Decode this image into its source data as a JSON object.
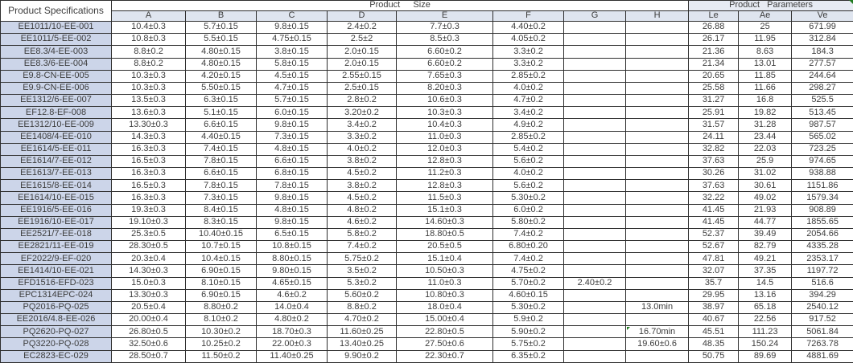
{
  "colors": {
    "first_column_fill": "#ccd5e9",
    "header_fill": "#dfe5ef",
    "params_header_fill": "#e7ebf3",
    "border_color": "#2e2e2e",
    "text_color": "#3d3d3d",
    "marker_green": "#1f7a1f"
  },
  "table": {
    "spec_header": "Product Specifications",
    "size_header": "Product Size",
    "params_header": "Product Parameters",
    "size_columns": [
      "A",
      "B",
      "C",
      "D",
      "E",
      "F",
      "G",
      "H"
    ],
    "param_columns": [
      "Le",
      "Ae",
      "Ve"
    ],
    "column_keys": [
      "spec",
      "A",
      "B",
      "C",
      "D",
      "E",
      "F",
      "G",
      "H",
      "Le",
      "Ae",
      "Ve"
    ],
    "rows": [
      [
        "EE1011/10-EE-001",
        "10.4±0.3",
        "5.7±0.15",
        "9.8±0.15",
        "2.4±0.2",
        "7.7±0.3",
        "4.40±0.2",
        "",
        "",
        "26.88",
        "25",
        "671.99"
      ],
      [
        "EE1011/5-EE-002",
        "10.8±0.3",
        "5.5±0.15",
        "4.75±0.15",
        "2.5±2",
        "8.5±0.3",
        "4.05±0.2",
        "",
        "",
        "26.17",
        "11.95",
        "312.84"
      ],
      [
        "EE8.3/4-EE-003",
        "8.8±0.2",
        "4.80±0.15",
        "3.8±0.15",
        "2.0±0.15",
        "6.60±0.2",
        "3.3±0.2",
        "",
        "",
        "21.36",
        "8.63",
        "184.3"
      ],
      [
        "EE8.3/6-EE-004",
        "8.8±0.2",
        "4.80±0.15",
        "5.8±0.15",
        "2.0±0.15",
        "6.60±0.2",
        "3.3±0.2",
        "",
        "",
        "21.34",
        "13.01",
        "277.57"
      ],
      [
        "E9.8-CN-EE-005",
        "10.3±0.3",
        "4.20±0.15",
        "4.5±0.15",
        "2.55±0.15",
        "7.65±0.3",
        "2.85±0.2",
        "",
        "",
        "20.65",
        "11.85",
        "244.64"
      ],
      [
        "E9.9-CN-EE-006",
        "10.3±0.3",
        "5.50±0.15",
        "4.7±0.15",
        "2.5±0.15",
        "8.20±0.3",
        "4.0±0.2",
        "",
        "",
        "25.58",
        "11.66",
        "298.27"
      ],
      [
        "EE1312/6-EE-007",
        "13.5±0.3",
        "6.3±0.15",
        "5.7±0.15",
        "2.8±0.2",
        "10.6±0.3",
        "4.7±0.2",
        "",
        "",
        "31.27",
        "16.8",
        "525.5"
      ],
      [
        "EF12.8-EF-008",
        "13.6±0.3",
        "5.1±0.15",
        "6.0±0.15",
        "3.20±0.2",
        "10.3±0.3",
        "3.4±0.2",
        "",
        "",
        "25.91",
        "19.82",
        "513.45"
      ],
      [
        "EE1312/10-EE-009",
        "13.30±0.3",
        "6.6±0.15",
        "9.8±0.15",
        "3.4±0.2",
        "10.4±0.3",
        "4.9±0.2",
        "",
        "",
        "31.57",
        "31.28",
        "987.57"
      ],
      [
        "EE1408/4-EE-010",
        "14.3±0.3",
        "4.40±0.15",
        "7.3±0.15",
        "3.3±0.2",
        "11.0±0.3",
        "2.85±0.2",
        "",
        "",
        "24.11",
        "23.44",
        "565.02"
      ],
      [
        "EE1614/5-EE-011",
        "16.3±0.3",
        "7.4±0.15",
        "4.8±0.15",
        "4.0±0.2",
        "12.0±0.3",
        "5.4±0.2",
        "",
        "",
        "32.82",
        "22.03",
        "723.25"
      ],
      [
        "EE1614/7-EE-012",
        "16.5±0.3",
        "7.8±0.15",
        "6.6±0.15",
        "3.8±0.2",
        "12.8±0.3",
        "5.6±0.2",
        "",
        "",
        "37.63",
        "25.9",
        "974.65"
      ],
      [
        "EE1613/7-EE-013",
        "16.3±0.3",
        "6.6±0.15",
        "6.8±0.15",
        "4.5±0.2",
        "11.2±0.3",
        "4.0±0.2",
        "",
        "",
        "30.26",
        "31.02",
        "938.88"
      ],
      [
        "EE1615/8-EE-014",
        "16.5±0.3",
        "7.8±0.15",
        "7.8±0.15",
        "3.8±0.2",
        "12.8±0.3",
        "5.6±0.2",
        "",
        "",
        "37.63",
        "30.61",
        "1151.86"
      ],
      [
        "EE1614/10-EE-015",
        "16.3±0.3",
        "7.3±0.15",
        "9.8±0.15",
        "4.5±0.2",
        "11.5±0.3",
        "5.30±0.2",
        "",
        "",
        "32.22",
        "49.02",
        "1579.34"
      ],
      [
        "EE1916/5-EE-016",
        "19.3±0.3",
        "8.4±0.15",
        "4.8±0.15",
        "4.8±0.2",
        "15.1±0.3",
        "6.0±0.2",
        "",
        "",
        "41.45",
        "21.93",
        "908.89"
      ],
      [
        "EE1916/10-EE-017",
        "19.10±0.3",
        "8.3±0.15",
        "9.8±0.15",
        "4.6±0.2",
        "14.60±0.3",
        "5.80±0.2",
        "",
        "",
        "41.45",
        "44.77",
        "1855.65"
      ],
      [
        "EE2521/7-EE-018",
        "25.3±0.5",
        "10.40±0.15",
        "6.5±0.15",
        "5.8±0.2",
        "18.80±0.5",
        "7.4±0.2",
        "",
        "",
        "52.37",
        "39.49",
        "2054.66"
      ],
      [
        "EE2821/11-EE-019",
        "28.30±0.5",
        "10.7±0.15",
        "10.8±0.15",
        "7.4±0.2",
        "20.5±0.5",
        "6.80±0.20",
        "",
        "",
        "52.67",
        "82.79",
        "4335.28"
      ],
      [
        "EF2022/9-EF-020",
        "20.3±0.4",
        "10.4±0.15",
        "8.80±0.15",
        "5.75±0.2",
        "15.1±0.4",
        "7.4±0.2",
        "",
        "",
        "47.81",
        "49.21",
        "2353.17"
      ],
      [
        "EE1414/10-EE-021",
        "14.30±0.3",
        "6.90±0.15",
        "9.80±0.15",
        "3.5±0.2",
        "10.50±0.3",
        "4.75±0.2",
        "",
        "",
        "32.07",
        "37.35",
        "1197.72"
      ],
      [
        "EFD1516-EFD-023",
        "15.0±0.3",
        "8.10±0.15",
        "4.65±0.15",
        "5.3±0.2",
        "11.0±0.3",
        "5.70±0.2",
        "2.40±0.2",
        "",
        "35.7",
        "14.5",
        "516.6"
      ],
      [
        "EPC1314EPC-024",
        "13.30±0.3",
        "6.90±0.15",
        "4.6±0.2",
        "5.60±0.2",
        "10.80±0.3",
        "4.60±0.15",
        "",
        "",
        "29.95",
        "13.16",
        "394.29"
      ],
      [
        "PQ2016-PQ-025",
        "20.5±0.4",
        "8.80±0.2",
        "14.0±0.4",
        "8.8±0.2",
        "18.0±0.4",
        "5.30±0.2",
        "",
        "13.0min",
        "38.97",
        "65.18",
        "2540.12"
      ],
      [
        "EE2016/4.8-EE-026",
        "20.00±0.4",
        "8.10±0.2",
        "4.80±0.2",
        "4.70±0.2",
        "15.00±0.4",
        "5.9±0.2",
        "",
        "",
        "40.67",
        "22.56",
        "917.52"
      ],
      [
        "PQ2620-PQ-027",
        "26.80±0.5",
        "10.30±0.2",
        "18.70±0.3",
        "11.60±0.25",
        "22.80±0.5",
        "5.90±0.2",
        "",
        "16.70min",
        "45.51",
        "111.23",
        "5061.84"
      ],
      [
        "PQ3220-PQ-028",
        "32.50±0.6",
        "10.25±0.2",
        "22.00±0.3",
        "13.40±0.25",
        "27.50±0.6",
        "5.75±0.2",
        "",
        "19.60±0.6",
        "48.35",
        "150.24",
        "7263.78"
      ],
      [
        "EC2823-EC-029",
        "28.50±0.7",
        "11.50±0.2",
        "11.40±0.25",
        "9.90±0.2",
        "22.30±0.7",
        "6.35±0.2",
        "",
        "",
        "50.75",
        "89.69",
        "4881.69"
      ]
    ],
    "comment_markers": [
      {
        "row_index": 25,
        "cell_index": 8
      }
    ],
    "corner_marker": true
  }
}
